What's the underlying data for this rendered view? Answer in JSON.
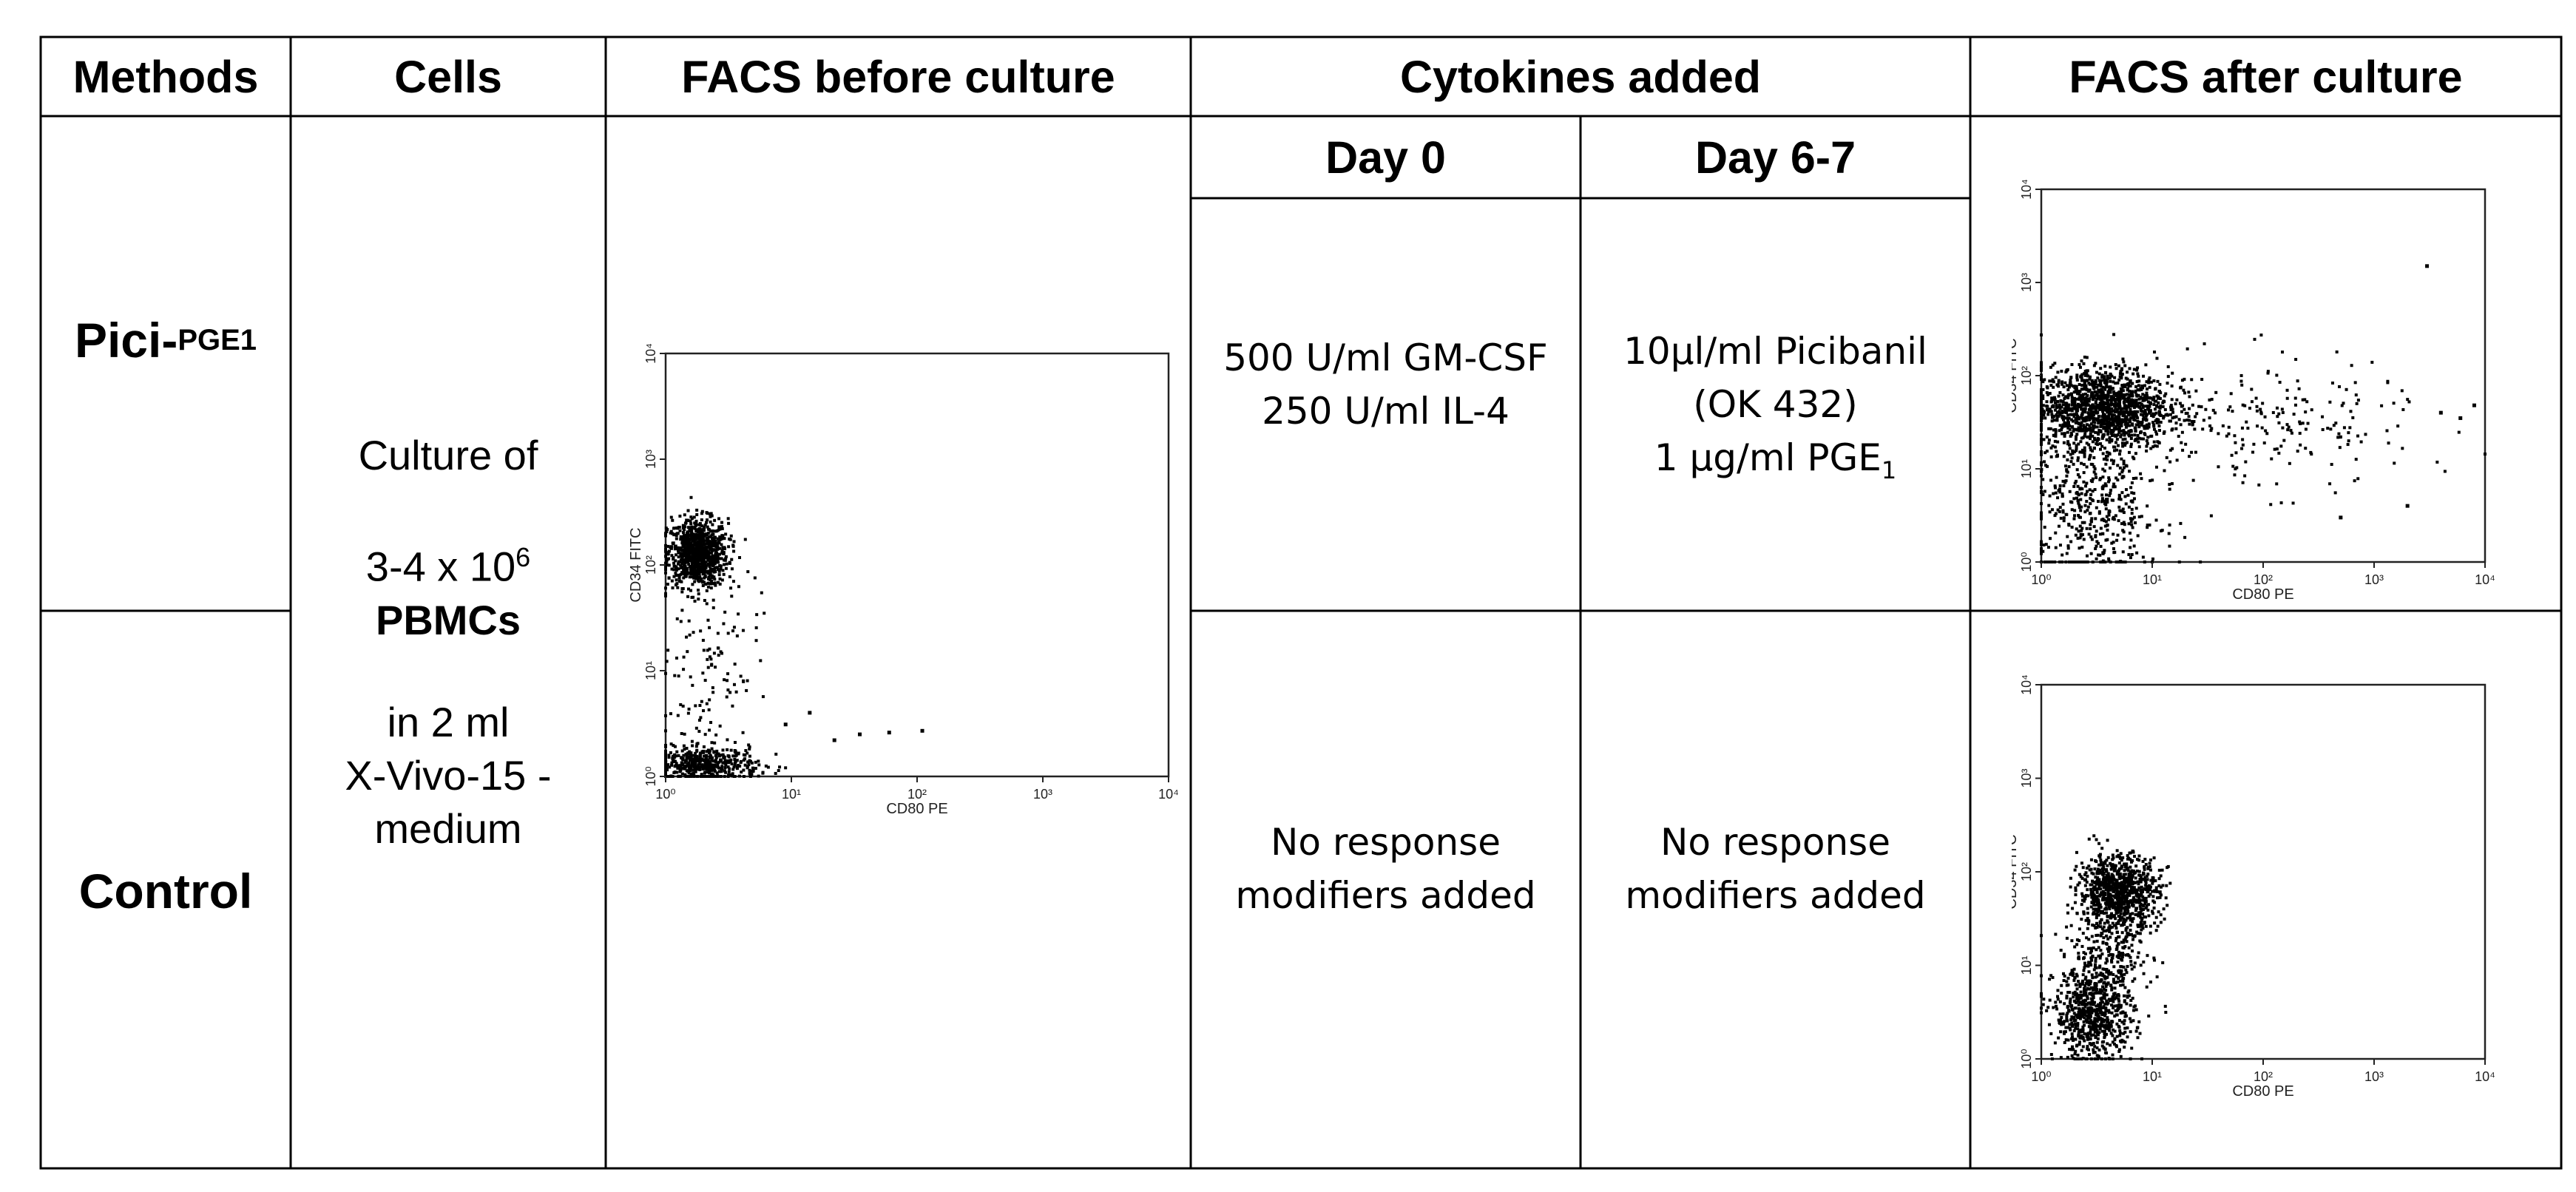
{
  "headers": {
    "methods": "Methods",
    "cells": "Cells",
    "facs_before": "FACS before culture",
    "cytokines": "Cytokines added",
    "day0": "Day 0",
    "day67": "Day 6-7",
    "facs_after": "FACS after culture"
  },
  "rows": {
    "pici": {
      "method_main": "Pici-",
      "method_sub": "PGE1",
      "day0_line1": "500 U/ml GM-CSF",
      "day0_line2": "250 U/ml IL-4",
      "day67_line1": "10µl/ml Picibanil",
      "day67_line2": "(OK 432)",
      "day67_line3_main": "1 µg/ml PGE",
      "day67_line3_sub": "1"
    },
    "control": {
      "method": "Control",
      "day0_line1": "No response",
      "day0_line2": "modifiers added",
      "day67_line1": "No response",
      "day67_line2": "modifiers added"
    }
  },
  "cells_desc": {
    "line1": "Culture of",
    "line2_main": "3-4 x 10",
    "line2_sup": "6",
    "line3": "PBMCs",
    "line4": "in 2 ml",
    "line5": "X-Vivo-15 -",
    "line6": "medium"
  },
  "chart_data": [
    {
      "type": "scatter",
      "id": "facs-before",
      "xlabel": "CD80 PE",
      "ylabel": "CD34 FITC",
      "x_scale": "log",
      "y_scale": "log",
      "xlim": [
        1,
        10000
      ],
      "ylim": [
        1,
        10000
      ],
      "x_ticks": [
        "10⁰",
        "10¹",
        "10²",
        "10³",
        "10⁴"
      ],
      "y_ticks": [
        "10⁰",
        "10¹",
        "10²",
        "10³",
        "10⁴"
      ],
      "clusters": [
        {
          "cx": 1.8,
          "cy": 130,
          "sx": 0.12,
          "sy": 0.16,
          "n": 900
        },
        {
          "cx": 2.0,
          "cy": 1.3,
          "sx": 0.22,
          "sy": 0.08,
          "n": 450
        },
        {
          "cx": 2.2,
          "cy": 12,
          "sx": 0.2,
          "sy": 0.55,
          "n": 140
        }
      ],
      "outliers": [
        [
          22,
          2.2
        ],
        [
          35,
          2.5
        ],
        [
          60,
          2.6
        ],
        [
          110,
          2.7
        ],
        [
          9,
          3.1
        ],
        [
          14,
          4
        ]
      ]
    },
    {
      "type": "scatter",
      "id": "facs-after-pici",
      "xlabel": "CD80 PE",
      "ylabel": "CD34 FITC",
      "x_scale": "log",
      "y_scale": "log",
      "xlim": [
        1,
        10000
      ],
      "ylim": [
        1,
        10000
      ],
      "x_ticks": [
        "10⁰",
        "10¹",
        "10²",
        "10³",
        "10⁴"
      ],
      "y_ticks": [
        "10⁰",
        "10¹",
        "10²",
        "10³",
        "10⁴"
      ],
      "clusters": [
        {
          "cx": 3.5,
          "cy": 45,
          "sx": 0.3,
          "sy": 0.22,
          "n": 1300
        },
        {
          "cx": 3.0,
          "cy": 4,
          "sx": 0.3,
          "sy": 0.45,
          "n": 500
        },
        {
          "cx": 70,
          "cy": 30,
          "sx": 0.75,
          "sy": 0.35,
          "n": 260
        }
      ],
      "outliers": [
        [
          3000,
          1500
        ],
        [
          4000,
          40
        ],
        [
          6000,
          35
        ],
        [
          8000,
          48
        ],
        [
          500,
          3
        ],
        [
          2000,
          4
        ]
      ]
    },
    {
      "type": "scatter",
      "id": "facs-after-control",
      "xlabel": "CD80 PE",
      "ylabel": "CD34 FITC",
      "x_scale": "log",
      "y_scale": "log",
      "xlim": [
        1,
        10000
      ],
      "ylim": [
        1,
        10000
      ],
      "x_ticks": [
        "10⁰",
        "10¹",
        "10²",
        "10³",
        "10⁴"
      ],
      "y_ticks": [
        "10⁰",
        "10¹",
        "10²",
        "10³",
        "10⁴"
      ],
      "clusters": [
        {
          "cx": 5.0,
          "cy": 60,
          "sx": 0.18,
          "sy": 0.2,
          "n": 900
        },
        {
          "cx": 3.0,
          "cy": 3.0,
          "sx": 0.18,
          "sy": 0.25,
          "n": 700
        },
        {
          "cx": 4.0,
          "cy": 12,
          "sx": 0.2,
          "sy": 0.2,
          "n": 200
        }
      ],
      "outliers": []
    }
  ]
}
